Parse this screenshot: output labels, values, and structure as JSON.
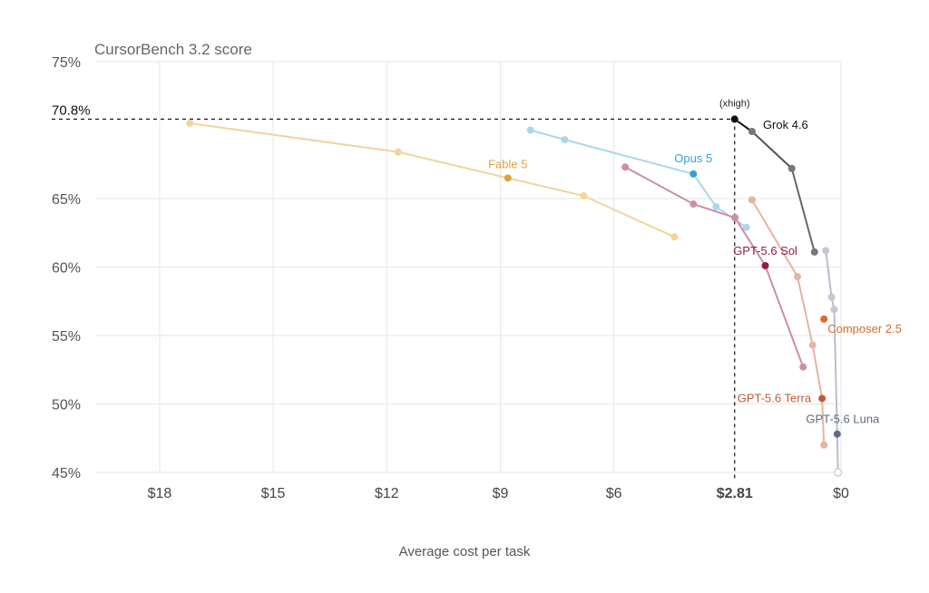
{
  "chart_data": {
    "type": "line",
    "title": "CursorBench 3.2 score",
    "xlabel": "Average cost per task",
    "ylabel": "",
    "x_reversed": true,
    "xlim": [
      0,
      19.7
    ],
    "ylim": [
      45,
      75
    ],
    "x_ticks": [
      {
        "value": 18,
        "label": "$18"
      },
      {
        "value": 15,
        "label": "$15"
      },
      {
        "value": 12,
        "label": "$12"
      },
      {
        "value": 9,
        "label": "$9"
      },
      {
        "value": 6,
        "label": "$6"
      },
      {
        "value": 2.81,
        "label": "$2.81"
      },
      {
        "value": 0,
        "label": "$0"
      }
    ],
    "y_ticks": [
      {
        "value": 75,
        "label": "75%"
      },
      {
        "value": 65,
        "label": "65%"
      },
      {
        "value": 60,
        "label": "60%"
      },
      {
        "value": 55,
        "label": "55%"
      },
      {
        "value": 50,
        "label": "50%"
      },
      {
        "value": 45,
        "label": "45%"
      }
    ],
    "grid": true,
    "highlight": {
      "x": 2.81,
      "y": 70.8,
      "y_label": "70.8%",
      "x_label": "$2.81",
      "point_label": "(xhigh)"
    },
    "series": [
      {
        "name": "Fable 5",
        "line_color": "#f1d59b",
        "point_color": "#f1d59b",
        "accent_color": "#d9a440",
        "label_color": "#d9a440",
        "x": [
          17.2,
          11.7,
          8.8,
          6.8,
          4.4
        ],
        "y": [
          70.5,
          68.4,
          66.5,
          65.2,
          62.2
        ],
        "accent_index": 2
      },
      {
        "name": "Opus 5",
        "line_color": "#abd6ec",
        "point_color": "#abd6ec",
        "accent_color": "#3a9ed6",
        "label_color": "#3a9ed6",
        "x": [
          8.2,
          7.3,
          3.9,
          3.3,
          2.5
        ],
        "y": [
          70.0,
          69.3,
          66.8,
          64.4,
          62.9
        ],
        "accent_index": 2
      },
      {
        "name": "GPT-5.6 Sol",
        "line_color": "#cc8fa4",
        "point_color": "#cc8fa4",
        "accent_color": "#8f1f45",
        "label_color": "#8f1f45",
        "x": [
          5.7,
          3.9,
          2.8,
          2.0,
          1.0
        ],
        "y": [
          67.3,
          64.6,
          63.6,
          60.1,
          52.7
        ],
        "accent_index": 3
      },
      {
        "name": "Grok 4.6",
        "line_color": "#222222",
        "point_color": "#777777",
        "accent_color": "#111111",
        "label_color": "#111111",
        "x": [
          2.81,
          2.35,
          1.3,
          0.7
        ],
        "y": [
          70.8,
          69.9,
          67.2,
          61.1
        ],
        "accent_index": 0,
        "line_colors": [
          "#111111",
          "#555555",
          "#666666"
        ]
      },
      {
        "name": "GPT-5.6 Terra",
        "line_color": "#e8b3a0",
        "point_color": "#e8b3a0",
        "accent_color": "#c05a35",
        "label_color": "#c05a35",
        "x": [
          2.35,
          1.15,
          0.75,
          0.5,
          0.45
        ],
        "y": [
          64.9,
          59.3,
          54.3,
          50.4,
          47.0
        ],
        "accent_index": 3
      },
      {
        "name": "Composer 2.5",
        "line_color": "#e06a2c",
        "point_color": "#e06a2c",
        "accent_color": "#e06a2c",
        "label_color": "#e06a2c",
        "x": [
          0.45
        ],
        "y": [
          56.2
        ],
        "accent_index": 0
      },
      {
        "name": "GPT-5.6 Luna",
        "line_color": "#b9bccb",
        "point_color": "#c4c7d2",
        "accent_color": "#616b84",
        "label_color": "#616b84",
        "x": [
          0.4,
          0.25,
          0.18,
          0.1,
          0.08
        ],
        "y": [
          61.2,
          57.8,
          56.9,
          47.8,
          45.0
        ],
        "accent_index": 3
      }
    ]
  }
}
